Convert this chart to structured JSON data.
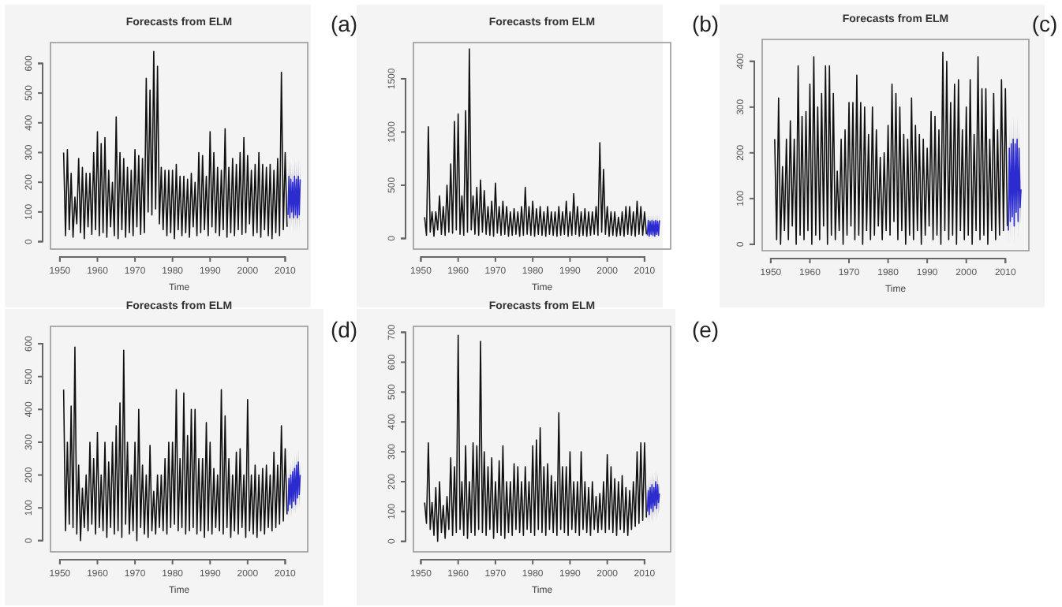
{
  "chart_data": [
    {
      "type": "line",
      "title": "Forecasts from ELM",
      "xlabel": "Time",
      "annotations": [
        "(a)"
      ],
      "xlim": [
        1947.5,
        2016
      ],
      "xticks": [
        1950,
        1960,
        1970,
        1980,
        1990,
        2000,
        2010
      ],
      "ylim": [
        -25,
        670
      ],
      "yticks": [
        0,
        100,
        200,
        300,
        400,
        500,
        600
      ],
      "grid": false,
      "x": [
        1951,
        1951.5,
        1952,
        1952.5,
        1953,
        1953.5,
        1954,
        1954.5,
        1955,
        1955.5,
        1956,
        1956.5,
        1957,
        1957.5,
        1958,
        1958.5,
        1959,
        1959.5,
        1960,
        1960.5,
        1961,
        1961.5,
        1962,
        1962.5,
        1963,
        1963.5,
        1964,
        1964.5,
        1965,
        1965.5,
        1966,
        1966.5,
        1967,
        1967.5,
        1968,
        1968.5,
        1969,
        1969.5,
        1970,
        1970.5,
        1971,
        1971.5,
        1972,
        1972.5,
        1973,
        1973.5,
        1974,
        1974.5,
        1975,
        1975.5,
        1976,
        1976.5,
        1977,
        1977.5,
        1978,
        1978.5,
        1979,
        1979.5,
        1980,
        1980.5,
        1981,
        1981.5,
        1982,
        1982.5,
        1983,
        1983.5,
        1984,
        1984.5,
        1985,
        1985.5,
        1986,
        1986.5,
        1987,
        1987.5,
        1988,
        1988.5,
        1989,
        1989.5,
        1990,
        1990.5,
        1991,
        1991.5,
        1992,
        1992.5,
        1993,
        1993.5,
        1994,
        1994.5,
        1995,
        1995.5,
        1996,
        1996.5,
        1997,
        1997.5,
        1998,
        1998.5,
        1999,
        1999.5,
        2000,
        2000.5,
        2001,
        2001.5,
        2002,
        2002.5,
        2003,
        2003.5,
        2004,
        2004.5,
        2005,
        2005.5,
        2006,
        2006.5,
        2007,
        2007.5,
        2008,
        2008.5,
        2009,
        2009.5,
        2010,
        2010.5
      ],
      "series": [
        {
          "color": "#111111",
          "values": [
            300,
            20,
            310,
            40,
            230,
            15,
            150,
            60,
            280,
            30,
            250,
            10,
            230,
            50,
            230,
            25,
            300,
            40,
            370,
            20,
            330,
            30,
            350,
            15,
            240,
            50,
            200,
            20,
            420,
            10,
            300,
            40,
            280,
            15,
            250,
            30,
            240,
            20,
            310,
            50,
            290,
            25,
            280,
            30,
            550,
            100,
            510,
            90,
            640,
            110,
            590,
            60,
            250,
            40,
            240,
            20,
            240,
            30,
            240,
            10,
            260,
            40,
            220,
            20,
            220,
            30,
            210,
            15,
            230,
            50,
            200,
            20,
            300,
            30,
            290,
            40,
            220,
            20,
            370,
            50,
            300,
            30,
            250,
            20,
            240,
            40,
            380,
            15,
            250,
            30,
            280,
            20,
            260,
            40,
            300,
            25,
            350,
            30,
            290,
            60,
            240,
            20,
            260,
            30,
            300,
            15,
            260,
            40,
            250,
            20,
            260,
            10,
            240,
            30,
            280,
            20,
            570,
            40,
            300,
            50
          ]
        },
        {
          "color": "#2b2bd0",
          "x": [
            2010.75,
            2011,
            2011.25,
            2011.5,
            2011.75,
            2012,
            2012.25,
            2012.5,
            2012.75,
            2013,
            2013.25,
            2013.5,
            2013.75,
            2014
          ],
          "values": [
            90,
            220,
            80,
            210,
            100,
            200,
            80,
            220,
            90,
            210,
            80,
            220,
            90,
            210
          ],
          "lower": [
            40,
            170,
            30,
            160,
            50,
            150,
            30,
            170,
            40,
            160,
            30,
            170,
            40,
            160
          ],
          "upper": [
            150,
            280,
            140,
            270,
            160,
            260,
            140,
            280,
            150,
            270,
            140,
            280,
            150,
            270
          ]
        }
      ]
    },
    {
      "type": "line",
      "title": "Forecasts from ELM",
      "xlabel": "Time",
      "annotations": [
        "(b)"
      ],
      "xlim": [
        1948,
        2017
      ],
      "xticks": [
        1950,
        1960,
        1970,
        1980,
        1990,
        2000,
        2010
      ],
      "ylim": [
        -100,
        1840
      ],
      "yticks": [
        0,
        500,
        1000,
        1500
      ],
      "grid": false,
      "x": [
        1951,
        1951.5,
        1952,
        1952.5,
        1953,
        1953.5,
        1954,
        1954.5,
        1955,
        1955.5,
        1956,
        1956.5,
        1957,
        1957.5,
        1958,
        1958.5,
        1959,
        1959.5,
        1960,
        1960.5,
        1961,
        1961.5,
        1962,
        1962.5,
        1963,
        1963.5,
        1964,
        1964.5,
        1965,
        1965.5,
        1966,
        1966.5,
        1967,
        1967.5,
        1968,
        1968.5,
        1969,
        1969.5,
        1970,
        1970.5,
        1971,
        1971.5,
        1972,
        1972.5,
        1973,
        1973.5,
        1974,
        1974.5,
        1975,
        1975.5,
        1976,
        1976.5,
        1977,
        1977.5,
        1978,
        1978.5,
        1979,
        1979.5,
        1980,
        1980.5,
        1981,
        1981.5,
        1982,
        1982.5,
        1983,
        1983.5,
        1984,
        1984.5,
        1985,
        1985.5,
        1986,
        1986.5,
        1987,
        1987.5,
        1988,
        1988.5,
        1989,
        1989.5,
        1990,
        1990.5,
        1991,
        1991.5,
        1992,
        1992.5,
        1993,
        1993.5,
        1994,
        1994.5,
        1995,
        1995.5,
        1996,
        1996.5,
        1997,
        1997.5,
        1998,
        1998.5,
        1999,
        1999.5,
        2000,
        2000.5,
        2001,
        2001.5,
        2002,
        2002.5,
        2003,
        2003.5,
        2004,
        2004.5,
        2005,
        2005.5,
        2006,
        2006.5,
        2007,
        2007.5,
        2008,
        2008.5,
        2009,
        2009.5,
        2010,
        2010.5
      ],
      "series": [
        {
          "color": "#111111",
          "values": [
            200,
            30,
            1050,
            60,
            250,
            20,
            250,
            80,
            400,
            40,
            300,
            30,
            500,
            60,
            700,
            50,
            1100,
            80,
            1170,
            40,
            400,
            30,
            1200,
            60,
            1780,
            80,
            400,
            40,
            480,
            30,
            550,
            60,
            450,
            40,
            300,
            30,
            350,
            20,
            520,
            50,
            300,
            30,
            350,
            40,
            300,
            20,
            250,
            30,
            280,
            40,
            250,
            20,
            300,
            30,
            480,
            40,
            300,
            30,
            350,
            20,
            280,
            40,
            300,
            30,
            250,
            20,
            300,
            40,
            250,
            30,
            250,
            20,
            300,
            30,
            250,
            40,
            350,
            20,
            250,
            30,
            420,
            40,
            300,
            20,
            250,
            30,
            280,
            20,
            250,
            30,
            250,
            40,
            300,
            30,
            900,
            60,
            650,
            40,
            300,
            20,
            250,
            30,
            250,
            20,
            200,
            30,
            250,
            20,
            300,
            40,
            300,
            30,
            250,
            20,
            350,
            40,
            300,
            30,
            250,
            40
          ]
        },
        {
          "color": "#2b2bd0",
          "x": [
            2010.75,
            2011,
            2011.25,
            2011.5,
            2011.75,
            2012,
            2012.25,
            2012.5,
            2012.75,
            2013,
            2013.25,
            2013.5,
            2013.75,
            2014
          ],
          "values": [
            30,
            170,
            20,
            160,
            40,
            170,
            30,
            160,
            20,
            170,
            40,
            160,
            30,
            170
          ],
          "lower": [
            0,
            120,
            0,
            110,
            0,
            120,
            0,
            110,
            0,
            120,
            0,
            110,
            0,
            120
          ],
          "upper": [
            90,
            230,
            80,
            220,
            100,
            230,
            90,
            220,
            80,
            230,
            100,
            220,
            90,
            230
          ]
        }
      ]
    },
    {
      "type": "line",
      "title": "Forecasts from ELM",
      "xlabel": "Time",
      "annotations": [
        "(c)"
      ],
      "xlim": [
        1947.8,
        2016
      ],
      "xticks": [
        1950,
        1960,
        1970,
        1980,
        1990,
        2000,
        2010
      ],
      "ylim": [
        -14,
        448
      ],
      "yticks": [
        0,
        100,
        200,
        300,
        400
      ],
      "grid": false,
      "x": [
        1951,
        1951.5,
        1952,
        1952.5,
        1953,
        1953.5,
        1954,
        1954.5,
        1955,
        1955.5,
        1956,
        1956.5,
        1957,
        1957.5,
        1958,
        1958.5,
        1959,
        1959.5,
        1960,
        1960.5,
        1961,
        1961.5,
        1962,
        1962.5,
        1963,
        1963.5,
        1964,
        1964.5,
        1965,
        1965.5,
        1966,
        1966.5,
        1967,
        1967.5,
        1968,
        1968.5,
        1969,
        1969.5,
        1970,
        1970.5,
        1971,
        1971.5,
        1972,
        1972.5,
        1973,
        1973.5,
        1974,
        1974.5,
        1975,
        1975.5,
        1976,
        1976.5,
        1977,
        1977.5,
        1978,
        1978.5,
        1979,
        1979.5,
        1980,
        1980.5,
        1981,
        1981.5,
        1982,
        1982.5,
        1983,
        1983.5,
        1984,
        1984.5,
        1985,
        1985.5,
        1986,
        1986.5,
        1987,
        1987.5,
        1988,
        1988.5,
        1989,
        1989.5,
        1990,
        1990.5,
        1991,
        1991.5,
        1992,
        1992.5,
        1993,
        1993.5,
        1994,
        1994.5,
        1995,
        1995.5,
        1996,
        1996.5,
        1997,
        1997.5,
        1998,
        1998.5,
        1999,
        1999.5,
        2000,
        2000.5,
        2001,
        2001.5,
        2002,
        2002.5,
        2003,
        2003.5,
        2004,
        2004.5,
        2005,
        2005.5,
        2006,
        2006.5,
        2007,
        2007.5,
        2008,
        2008.5,
        2009,
        2009.5,
        2010,
        2010.5
      ],
      "series": [
        {
          "color": "#111111",
          "values": [
            230,
            10,
            320,
            0,
            170,
            30,
            230,
            10,
            270,
            40,
            230,
            0,
            390,
            20,
            280,
            10,
            290,
            30,
            350,
            0,
            410,
            20,
            300,
            10,
            330,
            40,
            390,
            0,
            390,
            20,
            330,
            10,
            160,
            30,
            230,
            0,
            250,
            20,
            310,
            40,
            310,
            10,
            370,
            20,
            310,
            0,
            300,
            30,
            240,
            10,
            300,
            20,
            250,
            40,
            190,
            10,
            200,
            30,
            260,
            20,
            350,
            50,
            330,
            10,
            300,
            30,
            240,
            0,
            230,
            20,
            320,
            10,
            260,
            30,
            240,
            0,
            230,
            20,
            210,
            40,
            290,
            10,
            280,
            20,
            250,
            0,
            420,
            30,
            400,
            10,
            310,
            20,
            350,
            0,
            360,
            30,
            250,
            10,
            300,
            20,
            360,
            0,
            240,
            30,
            410,
            10,
            340,
            20,
            340,
            0,
            230,
            30,
            330,
            10,
            250,
            20,
            360,
            30,
            340,
            40
          ]
        },
        {
          "color": "#2b2bd0",
          "x": [
            2010.75,
            2011,
            2011.25,
            2011.5,
            2011.75,
            2012,
            2012.25,
            2012.5,
            2012.75,
            2013,
            2013.25,
            2013.5,
            2013.75,
            2014
          ],
          "values": [
            30,
            210,
            50,
            220,
            60,
            230,
            40,
            220,
            70,
            230,
            50,
            210,
            80,
            120
          ],
          "lower": [
            0,
            170,
            10,
            180,
            20,
            190,
            0,
            180,
            30,
            190,
            10,
            170,
            40,
            80
          ],
          "upper": [
            80,
            260,
            100,
            270,
            110,
            280,
            90,
            270,
            120,
            280,
            100,
            260,
            130,
            170
          ]
        }
      ]
    },
    {
      "type": "line",
      "title": "Forecasts from ELM",
      "xlabel": "Time",
      "annotations": [
        "(d)"
      ],
      "xlim": [
        1947.5,
        2016
      ],
      "xticks": [
        1950,
        1960,
        1970,
        1980,
        1990,
        2000,
        2010
      ],
      "ylim": [
        -34,
        653
      ],
      "yticks": [
        0,
        100,
        200,
        300,
        400,
        500,
        600
      ],
      "grid": false,
      "x": [
        1951,
        1951.5,
        1952,
        1952.5,
        1953,
        1953.5,
        1954,
        1954.5,
        1955,
        1955.5,
        1956,
        1956.5,
        1957,
        1957.5,
        1958,
        1958.5,
        1959,
        1959.5,
        1960,
        1960.5,
        1961,
        1961.5,
        1962,
        1962.5,
        1963,
        1963.5,
        1964,
        1964.5,
        1965,
        1965.5,
        1966,
        1966.5,
        1967,
        1967.5,
        1968,
        1968.5,
        1969,
        1969.5,
        1970,
        1970.5,
        1971,
        1971.5,
        1972,
        1972.5,
        1973,
        1973.5,
        1974,
        1974.5,
        1975,
        1975.5,
        1976,
        1976.5,
        1977,
        1977.5,
        1978,
        1978.5,
        1979,
        1979.5,
        1980,
        1980.5,
        1981,
        1981.5,
        1982,
        1982.5,
        1983,
        1983.5,
        1984,
        1984.5,
        1985,
        1985.5,
        1986,
        1986.5,
        1987,
        1987.5,
        1988,
        1988.5,
        1989,
        1989.5,
        1990,
        1990.5,
        1991,
        1991.5,
        1992,
        1992.5,
        1993,
        1993.5,
        1994,
        1994.5,
        1995,
        1995.5,
        1996,
        1996.5,
        1997,
        1997.5,
        1998,
        1998.5,
        1999,
        1999.5,
        2000,
        2000.5,
        2001,
        2001.5,
        2002,
        2002.5,
        2003,
        2003.5,
        2004,
        2004.5,
        2005,
        2005.5,
        2006,
        2006.5,
        2007,
        2007.5,
        2008,
        2008.5,
        2009,
        2009.5,
        2010,
        2010.5
      ],
      "series": [
        {
          "color": "#111111",
          "values": [
            460,
            30,
            300,
            50,
            410,
            40,
            590,
            20,
            230,
            0,
            160,
            40,
            200,
            30,
            300,
            50,
            250,
            20,
            330,
            40,
            200,
            30,
            300,
            10,
            240,
            40,
            300,
            20,
            350,
            30,
            420,
            10,
            580,
            50,
            300,
            20,
            200,
            30,
            300,
            0,
            400,
            40,
            230,
            20,
            200,
            10,
            290,
            30,
            150,
            20,
            200,
            40,
            200,
            30,
            250,
            20,
            300,
            40,
            300,
            50,
            460,
            30,
            250,
            40,
            450,
            20,
            320,
            30,
            400,
            40,
            400,
            20,
            250,
            30,
            250,
            10,
            360,
            30,
            300,
            20,
            220,
            40,
            200,
            30,
            460,
            20,
            380,
            40,
            250,
            10,
            200,
            30,
            270,
            20,
            280,
            40,
            200,
            10,
            430,
            30,
            200,
            20,
            230,
            10,
            200,
            30,
            220,
            20,
            230,
            40,
            200,
            30,
            270,
            40,
            230,
            50,
            350,
            60,
            280,
            80
          ]
        },
        {
          "color": "#2b2bd0",
          "x": [
            2010.75,
            2011,
            2011.25,
            2011.5,
            2011.75,
            2012,
            2012.25,
            2012.5,
            2012.75,
            2013,
            2013.25,
            2013.5,
            2013.75,
            2014
          ],
          "values": [
            90,
            190,
            110,
            200,
            100,
            210,
            120,
            220,
            110,
            230,
            130,
            240,
            140,
            200
          ],
          "lower": [
            60,
            150,
            70,
            160,
            70,
            170,
            80,
            180,
            80,
            190,
            90,
            200,
            100,
            160
          ],
          "upper": [
            130,
            230,
            150,
            240,
            140,
            250,
            160,
            260,
            150,
            270,
            170,
            280,
            180,
            240
          ]
        }
      ]
    },
    {
      "type": "line",
      "title": "Forecasts from ELM",
      "xlabel": "Time",
      "annotations": [
        "(e)"
      ],
      "xlim": [
        1948,
        2017
      ],
      "xticks": [
        1950,
        1960,
        1970,
        1980,
        1990,
        2000,
        2010
      ],
      "ylim": [
        -35,
        720
      ],
      "yticks": [
        0,
        100,
        200,
        300,
        400,
        500,
        600,
        700
      ],
      "grid": false,
      "x": [
        1951,
        1951.5,
        1952,
        1952.5,
        1953,
        1953.5,
        1954,
        1954.5,
        1955,
        1955.5,
        1956,
        1956.5,
        1957,
        1957.5,
        1958,
        1958.5,
        1959,
        1959.5,
        1960,
        1960.5,
        1961,
        1961.5,
        1962,
        1962.5,
        1963,
        1963.5,
        1964,
        1964.5,
        1965,
        1965.5,
        1966,
        1966.5,
        1967,
        1967.5,
        1968,
        1968.5,
        1969,
        1969.5,
        1970,
        1970.5,
        1971,
        1971.5,
        1972,
        1972.5,
        1973,
        1973.5,
        1974,
        1974.5,
        1975,
        1975.5,
        1976,
        1976.5,
        1977,
        1977.5,
        1978,
        1978.5,
        1979,
        1979.5,
        1980,
        1980.5,
        1981,
        1981.5,
        1982,
        1982.5,
        1983,
        1983.5,
        1984,
        1984.5,
        1985,
        1985.5,
        1986,
        1986.5,
        1987,
        1987.5,
        1988,
        1988.5,
        1989,
        1989.5,
        1990,
        1990.5,
        1991,
        1991.5,
        1992,
        1992.5,
        1993,
        1993.5,
        1994,
        1994.5,
        1995,
        1995.5,
        1996,
        1996.5,
        1997,
        1997.5,
        1998,
        1998.5,
        1999,
        1999.5,
        2000,
        2000.5,
        2001,
        2001.5,
        2002,
        2002.5,
        2003,
        2003.5,
        2004,
        2004.5,
        2005,
        2005.5,
        2006,
        2006.5,
        2007,
        2007.5,
        2008,
        2008.5,
        2009,
        2009.5,
        2010,
        2010.5
      ],
      "series": [
        {
          "color": "#111111",
          "values": [
            130,
            60,
            330,
            40,
            130,
            20,
            180,
            0,
            200,
            30,
            120,
            10,
            150,
            40,
            280,
            20,
            250,
            30,
            690,
            40,
            200,
            20,
            320,
            10,
            200,
            30,
            330,
            20,
            320,
            40,
            670,
            30,
            300,
            20,
            250,
            40,
            280,
            10,
            200,
            30,
            270,
            20,
            320,
            10,
            200,
            30,
            200,
            20,
            260,
            40,
            250,
            30,
            200,
            20,
            250,
            40,
            200,
            30,
            320,
            20,
            340,
            40,
            380,
            30,
            250,
            20,
            260,
            40,
            220,
            30,
            200,
            20,
            430,
            40,
            250,
            30,
            250,
            20,
            300,
            40,
            200,
            30,
            200,
            20,
            300,
            40,
            200,
            30,
            180,
            20,
            200,
            40,
            150,
            30,
            160,
            40,
            200,
            30,
            290,
            40,
            250,
            30,
            210,
            20,
            200,
            40,
            220,
            30,
            180,
            20,
            170,
            40,
            200,
            50,
            300,
            60,
            330,
            70,
            330,
            80
          ]
        },
        {
          "color": "#2b2bd0",
          "x": [
            2010.75,
            2011,
            2011.25,
            2011.5,
            2011.75,
            2012,
            2012.25,
            2012.5,
            2012.75,
            2013,
            2013.25,
            2013.5,
            2013.75,
            2014
          ],
          "values": [
            100,
            170,
            90,
            180,
            110,
            190,
            100,
            180,
            120,
            200,
            110,
            190,
            130,
            160
          ],
          "lower": [
            70,
            130,
            60,
            140,
            70,
            150,
            60,
            140,
            80,
            160,
            70,
            150,
            90,
            120
          ],
          "upper": [
            140,
            210,
            130,
            220,
            150,
            230,
            140,
            220,
            160,
            240,
            150,
            230,
            170,
            200
          ]
        }
      ]
    }
  ]
}
